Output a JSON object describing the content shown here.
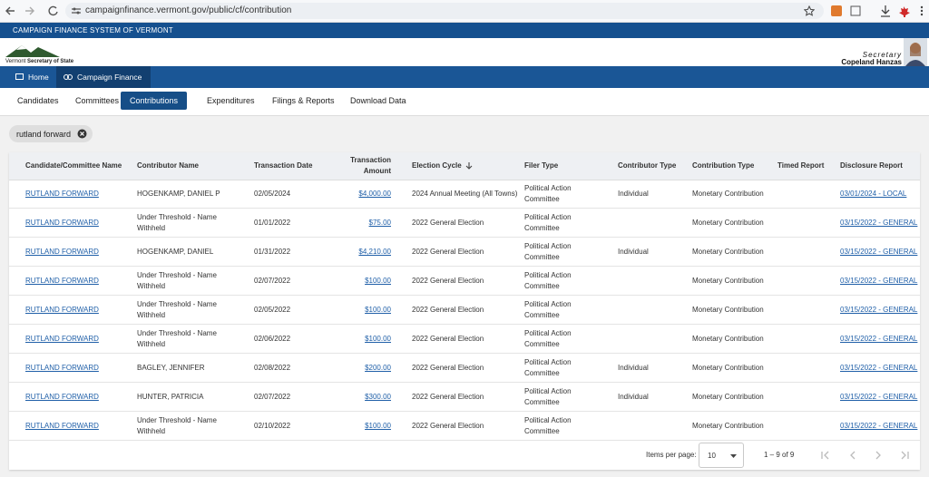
{
  "browser": {
    "url": "campaignfinance.vermont.gov/public/cf/contribution"
  },
  "header": {
    "banner": "CAMPAIGN FINANCE SYSTEM OF VERMONT",
    "logo_line1": "Vermont",
    "logo_line2": "Secretary of State",
    "official_title": "Secretary",
    "official_name": "Copeland Hanzas"
  },
  "nav": {
    "items": [
      "Home",
      "Campaign Finance"
    ]
  },
  "tabs": {
    "items": [
      "Candidates",
      "Committees",
      "Contributions",
      "Expenditures",
      "Filings & Reports",
      "Download Data"
    ],
    "active": 2
  },
  "filter": {
    "chip": "rutland forward"
  },
  "table": {
    "headers": [
      "Candidate/Committee Name",
      "Contributor Name",
      "Transaction Date",
      "Transaction Amount",
      "Election Cycle",
      "Filer Type",
      "Contributor Type",
      "Contribution Type",
      "Timed Report",
      "Disclosure Report"
    ],
    "rows": [
      [
        "RUTLAND FORWARD",
        "HOGENKAMP, DANIEL P",
        "02/05/2024",
        "$4,000.00",
        "2024 Annual Meeting (All Towns)",
        "Political Action Committee",
        "Individual",
        "Monetary Contribution",
        null,
        "03/01/2024 - LOCAL"
      ],
      [
        "RUTLAND FORWARD",
        "Under Threshold - Name Withheld",
        "01/01/2022",
        "$75.00",
        "2022 General Election",
        "Political Action Committee",
        null,
        "Monetary Contribution",
        null,
        "03/15/2022 - GENERAL"
      ],
      [
        "RUTLAND FORWARD",
        "HOGENKAMP, DANIEL",
        "01/31/2022",
        "$4,210.00",
        "2022 General Election",
        "Political Action Committee",
        "Individual",
        "Monetary Contribution",
        null,
        "03/15/2022 - GENERAL"
      ],
      [
        "RUTLAND FORWARD",
        "Under Threshold - Name Withheld",
        "02/07/2022",
        "$100.00",
        "2022 General Election",
        "Political Action Committee",
        null,
        "Monetary Contribution",
        null,
        "03/15/2022 - GENERAL"
      ],
      [
        "RUTLAND FORWARD",
        "Under Threshold - Name Withheld",
        "02/05/2022",
        "$100.00",
        "2022 General Election",
        "Political Action Committee",
        null,
        "Monetary Contribution",
        null,
        "03/15/2022 - GENERAL"
      ],
      [
        "RUTLAND FORWARD",
        "Under Threshold - Name Withheld",
        "02/06/2022",
        "$100.00",
        "2022 General Election",
        "Political Action Committee",
        null,
        "Monetary Contribution",
        null,
        "03/15/2022 - GENERAL"
      ],
      [
        "RUTLAND FORWARD",
        "BAGLEY, JENNIFER",
        "02/08/2022",
        "$200.00",
        "2022 General Election",
        "Political Action Committee",
        "Individual",
        "Monetary Contribution",
        null,
        "03/15/2022 - GENERAL"
      ],
      [
        "RUTLAND FORWARD",
        "HUNTER, PATRICIA",
        "02/07/2022",
        "$300.00",
        "2022 General Election",
        "Political Action Committee",
        "Individual",
        "Monetary Contribution",
        null,
        "03/15/2022 - GENERAL"
      ],
      [
        "RUTLAND FORWARD",
        "Under Threshold - Name Withheld",
        "02/10/2022",
        "$100.00",
        "2022 General Election",
        "Political Action Committee",
        null,
        "Monetary Contribution",
        null,
        "03/15/2022 - GENERAL"
      ]
    ]
  },
  "pagination": {
    "label": "Items per page:",
    "page_size": 10,
    "range": "1 – 9 of 9"
  }
}
